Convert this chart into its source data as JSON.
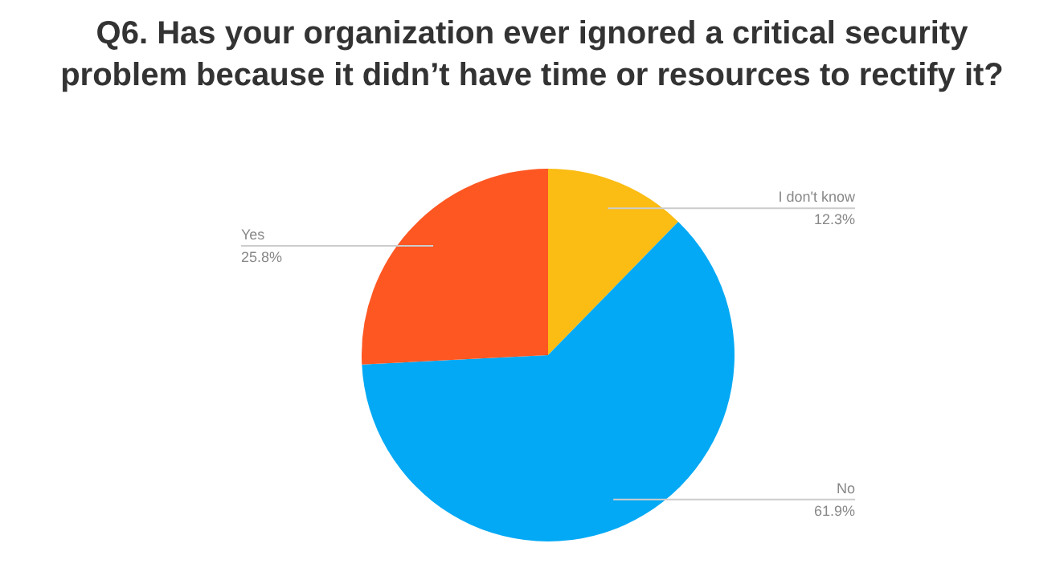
{
  "chart_data": {
    "type": "pie",
    "title": "Q6. Has your organization ever ignored a critical security problem because it didn’t have time or resources to rectify it?",
    "categories": [
      "I don't know",
      "No",
      "Yes"
    ],
    "values": [
      12.3,
      61.9,
      25.8
    ],
    "colors": [
      "#fbbc13",
      "#03a9f4",
      "#ff5722"
    ],
    "value_labels": [
      "12.3%",
      "61.9%",
      "25.8%"
    ],
    "legend": false
  }
}
